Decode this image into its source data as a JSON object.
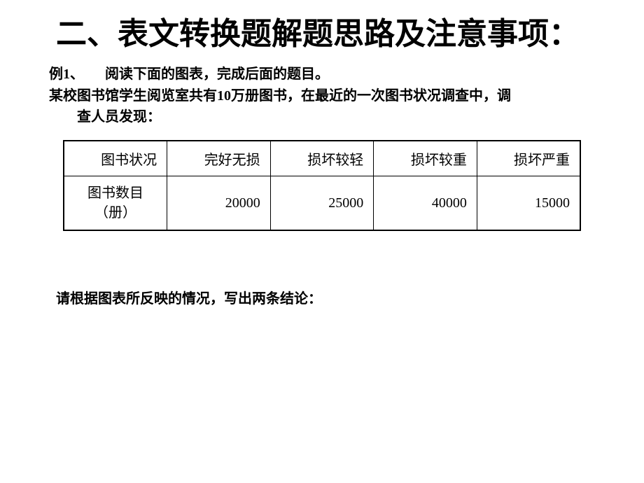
{
  "title": "二、表文转换题解题思路及注意事项：",
  "example_label": "例1、　　阅读下面的图表，完成后面的题目。",
  "intro_line1": "某校图书馆学生阅览室共有10万册图书，在最近的一次图书状况调查中，调",
  "intro_line2": "查人员发现：",
  "table": {
    "headers": [
      "图书状况",
      "完好无损",
      "损坏较轻",
      "损坏较重",
      "损坏严重"
    ],
    "row_label_line1": "图书数目",
    "row_label_line2": "（册）",
    "values": [
      "20000",
      "25000",
      "40000",
      "15000"
    ]
  },
  "conclusion": "请根据图表所反映的情况，写出两条结论：",
  "styles": {
    "background_color": "#ffffff",
    "text_color": "#000000",
    "border_color": "#000000",
    "title_fontsize": 44,
    "body_fontsize": 20
  }
}
